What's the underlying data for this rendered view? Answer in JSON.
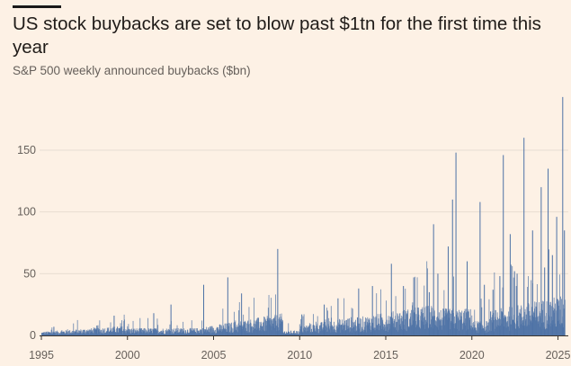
{
  "title": "US stock buybacks are set to blow past $1tn for the first time this year",
  "subtitle": "S&P 500 weekly announced buybacks ($bn)",
  "colors": {
    "bar": "#4d72a6",
    "grid": "#e8ddd2",
    "background": "#fdf1e5"
  },
  "chart_data": {
    "type": "bar",
    "title": "US stock buybacks are set to blow past $1tn for the first time this year",
    "subtitle": "S&P 500 weekly announced buybacks ($bn)",
    "xlim": [
      1995,
      2025.6
    ],
    "ylim": [
      0,
      190
    ],
    "yticks": [
      0,
      50,
      100,
      150
    ],
    "xticks": [
      1995,
      2000,
      2005,
      2010,
      2015,
      2020,
      2025
    ],
    "grid": true,
    "notable_weeks": [
      {
        "x": 1995.7,
        "y": 7
      },
      {
        "x": 1998.2,
        "y": 8
      },
      {
        "x": 1999.2,
        "y": 16
      },
      {
        "x": 2001.5,
        "y": 18
      },
      {
        "x": 2002.5,
        "y": 25
      },
      {
        "x": 2004.4,
        "y": 41
      },
      {
        "x": 2005.8,
        "y": 47
      },
      {
        "x": 2006.6,
        "y": 34
      },
      {
        "x": 2008.7,
        "y": 70
      },
      {
        "x": 2010.1,
        "y": 17
      },
      {
        "x": 2011.4,
        "y": 25
      },
      {
        "x": 2012.2,
        "y": 30
      },
      {
        "x": 2013.4,
        "y": 38
      },
      {
        "x": 2014.2,
        "y": 40
      },
      {
        "x": 2015.3,
        "y": 58
      },
      {
        "x": 2016.0,
        "y": 40
      },
      {
        "x": 2016.6,
        "y": 47
      },
      {
        "x": 2017.5,
        "y": 35
      },
      {
        "x": 2017.75,
        "y": 90
      },
      {
        "x": 2018.0,
        "y": 50
      },
      {
        "x": 2018.6,
        "y": 72
      },
      {
        "x": 2018.85,
        "y": 110
      },
      {
        "x": 2019.05,
        "y": 148
      },
      {
        "x": 2019.7,
        "y": 60
      },
      {
        "x": 2020.45,
        "y": 108
      },
      {
        "x": 2020.7,
        "y": 41
      },
      {
        "x": 2021.2,
        "y": 37
      },
      {
        "x": 2021.6,
        "y": 48
      },
      {
        "x": 2021.8,
        "y": 146
      },
      {
        "x": 2022.2,
        "y": 82
      },
      {
        "x": 2022.45,
        "y": 52
      },
      {
        "x": 2022.6,
        "y": 50
      },
      {
        "x": 2023.0,
        "y": 160
      },
      {
        "x": 2023.5,
        "y": 85
      },
      {
        "x": 2024.0,
        "y": 120
      },
      {
        "x": 2024.2,
        "y": 55
      },
      {
        "x": 2024.4,
        "y": 135
      },
      {
        "x": 2024.65,
        "y": 65
      },
      {
        "x": 2024.9,
        "y": 96
      },
      {
        "x": 2025.25,
        "y": 193
      },
      {
        "x": 2025.35,
        "y": 85
      }
    ]
  }
}
